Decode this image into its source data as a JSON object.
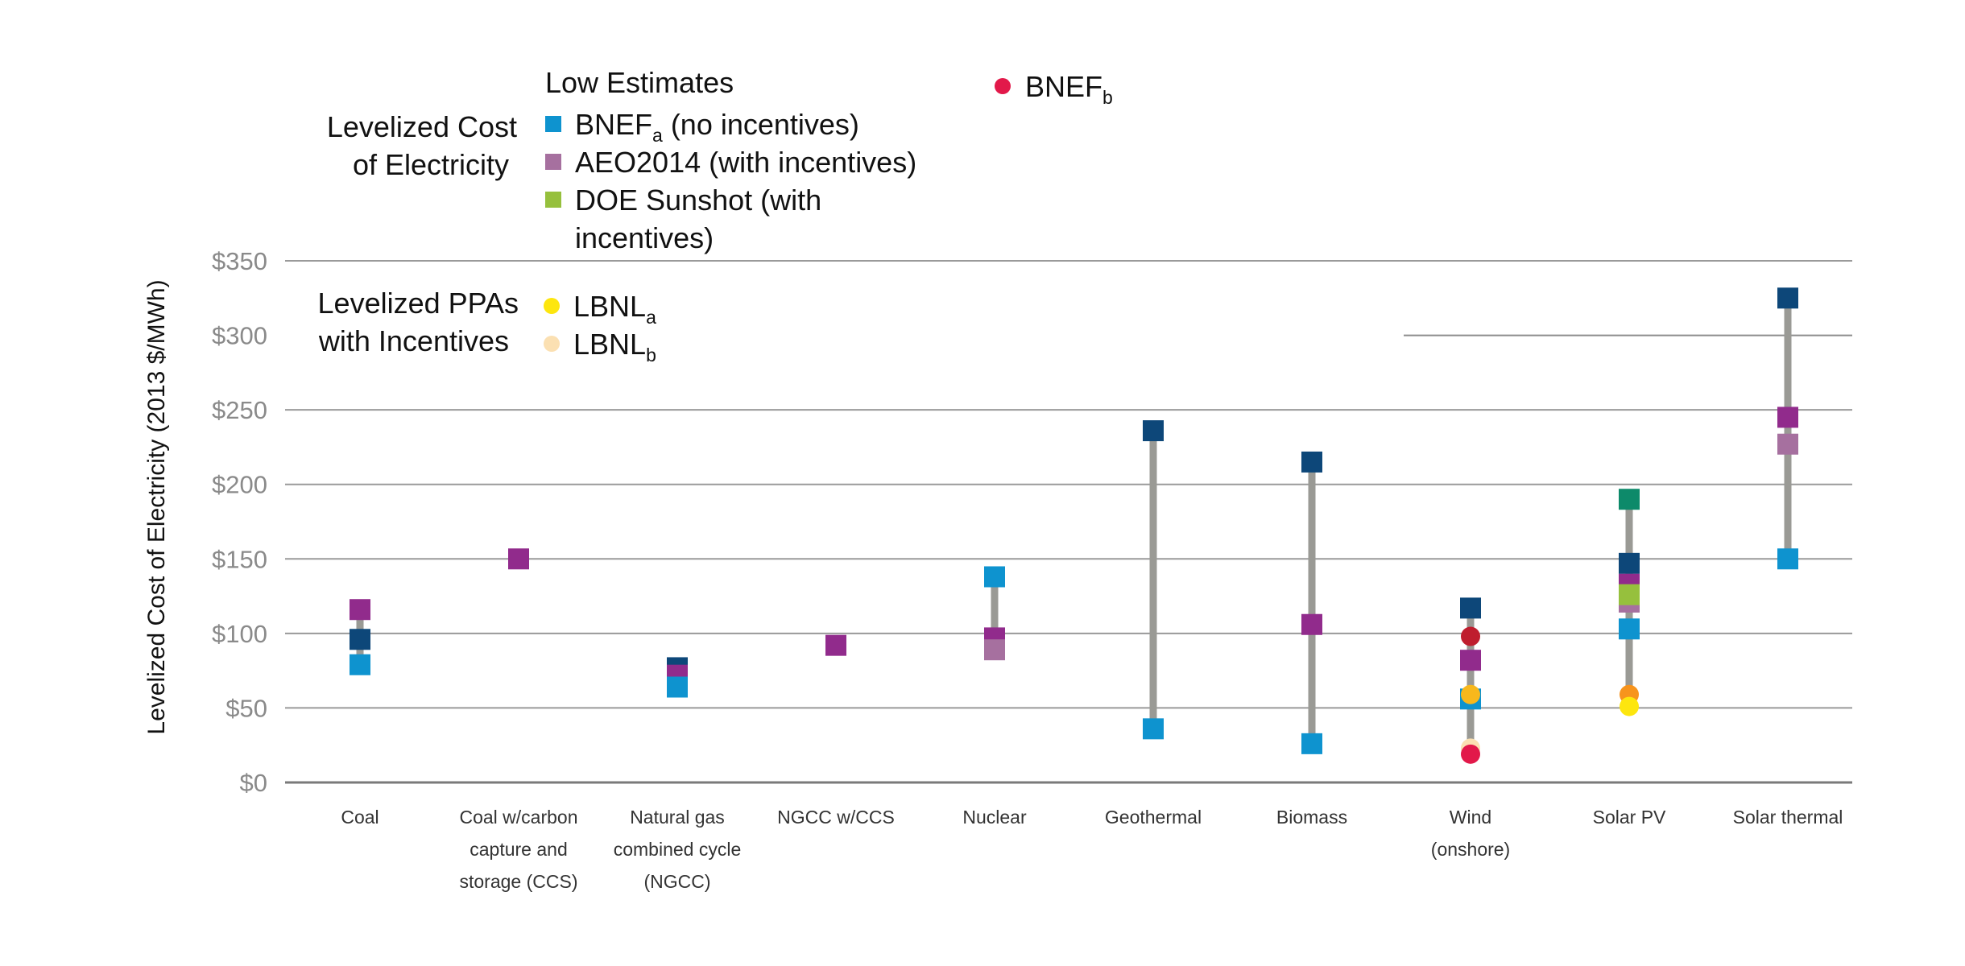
{
  "chart_data": {
    "type": "scatter",
    "ylabel": "Levelized Cost of Electricity (2013 $/MWh)",
    "ylim": [
      0,
      350
    ],
    "y_ticks": [
      {
        "value": 0,
        "label": "$0"
      },
      {
        "value": 50,
        "label": "$50"
      },
      {
        "value": 100,
        "label": "$100"
      },
      {
        "value": 150,
        "label": "$150"
      },
      {
        "value": 200,
        "label": "$200"
      },
      {
        "value": 250,
        "label": "$250"
      },
      {
        "value": 300,
        "label": "$300"
      },
      {
        "value": 350,
        "label": "$350"
      }
    ],
    "grid": true,
    "categories": [
      {
        "lines": [
          "Coal"
        ]
      },
      {
        "lines": [
          "Coal w/carbon",
          "capture and",
          "storage (CCS)"
        ]
      },
      {
        "lines": [
          "Natural gas",
          "combined cycle",
          "(NGCC)"
        ]
      },
      {
        "lines": [
          "NGCC w/CCS"
        ]
      },
      {
        "lines": [
          "Nuclear"
        ]
      },
      {
        "lines": [
          "Geothermal"
        ]
      },
      {
        "lines": [
          "Biomass"
        ]
      },
      {
        "lines": [
          "Wind",
          "(onshore)"
        ]
      },
      {
        "lines": [
          "Solar PV"
        ]
      },
      {
        "lines": [
          "Solar thermal"
        ]
      }
    ],
    "ranges": [
      {
        "category": 0,
        "low": 79,
        "high": 116
      },
      {
        "category": 2,
        "low": 64,
        "high": 77
      },
      {
        "category": 4,
        "low": 89,
        "high": 138
      },
      {
        "category": 5,
        "low": 36,
        "high": 236
      },
      {
        "category": 6,
        "low": 26,
        "high": 215
      },
      {
        "category": 7,
        "low": 19,
        "high": 117
      },
      {
        "category": 8,
        "low": 51,
        "high": 190
      },
      {
        "category": 9,
        "low": 150,
        "high": 325
      }
    ],
    "legend": {
      "groups": [
        {
          "title_lines": [
            "Levelized Cost",
            "of Electricity"
          ],
          "subtitle": "Low Estimates"
        },
        {
          "title_lines": [
            "Levelized PPAs",
            "with Incentives"
          ],
          "subtitle": ""
        }
      ],
      "entries": [
        {
          "key": "bnef_a",
          "marker": "square",
          "color": "#0e93cf",
          "label": "BNEF",
          "sub": "a",
          "suffix": " (no incentives)",
          "group": 0
        },
        {
          "key": "aeo_purple",
          "marker": "square",
          "color": "#a6709f",
          "label": "AEO2014 (with incentives)",
          "sub": "",
          "suffix": "",
          "group": 0
        },
        {
          "key": "doe",
          "marker": "square",
          "color": "#96c03d",
          "label": "DOE Sunshot (with",
          "sub": "",
          "suffix": "",
          "line2": "incentives)",
          "group": 0
        },
        {
          "key": "bnef_b",
          "marker": "circle",
          "color": "#e2194a",
          "label": "BNEF",
          "sub": "b",
          "suffix": "",
          "group": 0
        },
        {
          "key": "lbnl_a",
          "marker": "circle",
          "color": "#fde60e",
          "label": "LBNL",
          "sub": "a",
          "suffix": "",
          "group": 1
        },
        {
          "key": "lbnl_b",
          "marker": "circle",
          "color": "#fbe0b2",
          "label": "LBNL",
          "sub": "b",
          "suffix": "",
          "group": 1
        }
      ]
    },
    "points": [
      {
        "category": 0,
        "value": 116,
        "shape": "square",
        "color": "#912b8c"
      },
      {
        "category": 0,
        "value": 96,
        "shape": "square",
        "color": "#0d4779"
      },
      {
        "category": 0,
        "value": 79,
        "shape": "square",
        "color": "#0e93cf"
      },
      {
        "category": 1,
        "value": 150,
        "shape": "square",
        "color": "#912b8c"
      },
      {
        "category": 2,
        "value": 77,
        "shape": "square",
        "color": "#0d4779"
      },
      {
        "category": 2,
        "value": 72,
        "shape": "square",
        "color": "#912b8c"
      },
      {
        "category": 2,
        "value": 64,
        "shape": "square",
        "color": "#0e93cf"
      },
      {
        "category": 3,
        "value": 92,
        "shape": "square",
        "color": "#912b8c"
      },
      {
        "category": 4,
        "value": 138,
        "shape": "square",
        "color": "#0e93cf"
      },
      {
        "category": 4,
        "value": 97,
        "shape": "square",
        "color": "#912b8c"
      },
      {
        "category": 4,
        "value": 89,
        "shape": "square",
        "color": "#a6709f"
      },
      {
        "category": 5,
        "value": 236,
        "shape": "square",
        "color": "#0d4779"
      },
      {
        "category": 5,
        "value": 36,
        "shape": "square",
        "color": "#0e93cf"
      },
      {
        "category": 6,
        "value": 215,
        "shape": "square",
        "color": "#0d4779"
      },
      {
        "category": 6,
        "value": 106,
        "shape": "square",
        "color": "#912b8c"
      },
      {
        "category": 6,
        "value": 26,
        "shape": "square",
        "color": "#0e93cf"
      },
      {
        "category": 7,
        "value": 117,
        "shape": "square",
        "color": "#0d4779"
      },
      {
        "category": 7,
        "value": 98,
        "shape": "circle",
        "color": "#bf1e2e"
      },
      {
        "category": 7,
        "value": 82,
        "shape": "square",
        "color": "#912b8c"
      },
      {
        "category": 7,
        "value": 56,
        "shape": "square",
        "color": "#0e93cf"
      },
      {
        "category": 7,
        "value": 59,
        "shape": "circle",
        "color": "#f7b81c"
      },
      {
        "category": 7,
        "value": 23,
        "shape": "circle",
        "color": "#fbe0b2"
      },
      {
        "category": 7,
        "value": 19,
        "shape": "circle",
        "color": "#e2194a"
      },
      {
        "category": 8,
        "value": 190,
        "shape": "square",
        "color": "#0d8a6a"
      },
      {
        "category": 8,
        "value": 147,
        "shape": "square",
        "color": "#0d4779"
      },
      {
        "category": 8,
        "value": 133,
        "shape": "square",
        "color": "#912b8c"
      },
      {
        "category": 8,
        "value": 121,
        "shape": "square",
        "color": "#a6709f"
      },
      {
        "category": 8,
        "value": 126,
        "shape": "square",
        "color": "#96c03d"
      },
      {
        "category": 8,
        "value": 103,
        "shape": "square",
        "color": "#0e93cf"
      },
      {
        "category": 8,
        "value": 59,
        "shape": "circle",
        "color": "#f7941d"
      },
      {
        "category": 8,
        "value": 51,
        "shape": "circle",
        "color": "#fde60e"
      },
      {
        "category": 9,
        "value": 325,
        "shape": "square",
        "color": "#0d4779"
      },
      {
        "category": 9,
        "value": 245,
        "shape": "square",
        "color": "#912b8c"
      },
      {
        "category": 9,
        "value": 227,
        "shape": "square",
        "color": "#a6709f"
      },
      {
        "category": 9,
        "value": 150,
        "shape": "square",
        "color": "#0e93cf"
      }
    ]
  }
}
